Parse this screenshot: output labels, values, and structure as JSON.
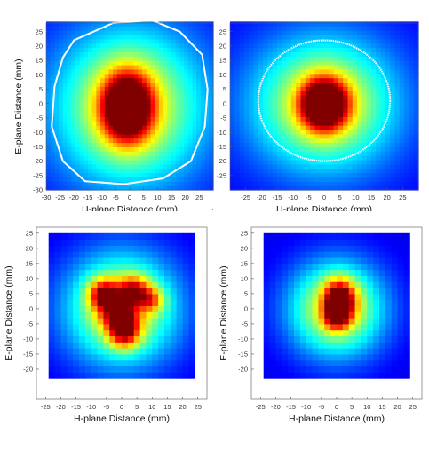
{
  "stray_mark": "·",
  "chart_data": [
    {
      "type": "heatmap",
      "style": "smooth",
      "xlabel": "H-plane Distance (mm)",
      "ylabel": "E-plane Distance (mm)",
      "xlim": [
        -30,
        30
      ],
      "ylim": [
        -30,
        28
      ],
      "xticks": [
        -30,
        -25,
        -20,
        -15,
        -10,
        -5,
        0,
        5,
        10,
        15,
        20,
        25
      ],
      "yticks": [
        25,
        20,
        15,
        10,
        5,
        0,
        -5,
        -10,
        -15,
        -20,
        -25,
        -30
      ],
      "colormap": "jet",
      "background": "#0a1a8a",
      "peaks": [
        {
          "x": -1,
          "y": -1,
          "sx": 6,
          "sy": 8,
          "amp": 1.0
        }
      ],
      "envelope": {
        "x": 0,
        "y": -1,
        "sx": 19,
        "sy": 19
      },
      "boundary": {
        "color": "#ffffff",
        "shape": "irregular",
        "points": [
          [
            -20,
            22
          ],
          [
            -6,
            28
          ],
          [
            8,
            29
          ],
          [
            18,
            25
          ],
          [
            26,
            17
          ],
          [
            28,
            5
          ],
          [
            27,
            -8
          ],
          [
            22,
            -20
          ],
          [
            12,
            -26
          ],
          [
            -2,
            -28
          ],
          [
            -16,
            -27
          ],
          [
            -24,
            -20
          ],
          [
            -28,
            -8
          ],
          [
            -27,
            6
          ],
          [
            -24,
            16
          ]
        ]
      }
    },
    {
      "type": "heatmap",
      "style": "smooth",
      "xlabel": "H-plane Distance (mm)",
      "ylabel": "E-plane Distance (mm)",
      "xlim": [
        -30,
        30
      ],
      "ylim": [
        -30,
        28
      ],
      "xticks": [
        -25,
        -20,
        -15,
        -10,
        -5,
        0,
        5,
        10,
        15,
        20,
        25
      ],
      "yticks": [
        25,
        20,
        15,
        10,
        5,
        0,
        -5,
        -10,
        -15,
        -20,
        -25
      ],
      "colormap": "jet",
      "background": "#0a1a8a",
      "peaks": [
        {
          "x": 0,
          "y": 0,
          "sx": 5,
          "sy": 6,
          "amp": 1.0
        }
      ],
      "envelope": {
        "x": 0,
        "y": 0,
        "sx": 16,
        "sy": 16
      },
      "boundary": {
        "color": "#ffffff",
        "shape": "ellipse",
        "cx": 0,
        "cy": 1,
        "rx": 21,
        "ry": 21
      }
    },
    {
      "type": "heatmap",
      "style": "pixelated",
      "xlabel": "H-plane Distance (mm)",
      "ylabel": "E-plane Distance (mm)",
      "xlim": [
        -28,
        28
      ],
      "ylim": [
        -30,
        27
      ],
      "data_extent": {
        "x": [
          -24,
          24
        ],
        "y": [
          -23,
          24
        ]
      },
      "cell_mm": 2,
      "xticks": [
        -25,
        -20,
        -15,
        -10,
        -5,
        0,
        5,
        10,
        15,
        20,
        25
      ],
      "yticks": [
        25,
        20,
        15,
        10,
        5,
        0,
        -5,
        -10,
        -15,
        -20
      ],
      "colormap": "jet",
      "peaks": [
        {
          "x": -6,
          "y": 5,
          "sx": 3.5,
          "sy": 3.5,
          "amp": 0.55
        },
        {
          "x": 4,
          "y": 6,
          "sx": 3.5,
          "sy": 3.5,
          "amp": 0.5
        },
        {
          "x": 10,
          "y": 3,
          "sx": 3,
          "sy": 3,
          "amp": 0.35
        },
        {
          "x": 1,
          "y": -7,
          "sx": 3.5,
          "sy": 4,
          "amp": 0.6
        },
        {
          "x": -2,
          "y": -1,
          "sx": 4,
          "sy": 4,
          "amp": 0.35
        }
      ],
      "envelope": {
        "x": 0,
        "y": 0,
        "sx": 13,
        "sy": 13
      }
    },
    {
      "type": "heatmap",
      "style": "pixelated",
      "xlabel": "H-plane Distance (mm)",
      "ylabel": "E-plane Distance (mm)",
      "xlim": [
        -28,
        28
      ],
      "ylim": [
        -30,
        27
      ],
      "data_extent": {
        "x": [
          -24,
          24
        ],
        "y": [
          -23,
          24
        ]
      },
      "cell_mm": 2,
      "xticks": [
        -25,
        -20,
        -15,
        -10,
        -5,
        0,
        5,
        10,
        15,
        20,
        25
      ],
      "yticks": [
        25,
        20,
        15,
        10,
        5,
        0,
        -5,
        -10,
        -15,
        -20
      ],
      "colormap": "jet",
      "peaks": [
        {
          "x": 1,
          "y": 3,
          "sx": 3.5,
          "sy": 4.5,
          "amp": 0.75
        },
        {
          "x": 0,
          "y": -3,
          "sx": 3,
          "sy": 3,
          "amp": 0.35
        }
      ],
      "envelope": {
        "x": 0,
        "y": 0,
        "sx": 11,
        "sy": 11
      }
    }
  ]
}
